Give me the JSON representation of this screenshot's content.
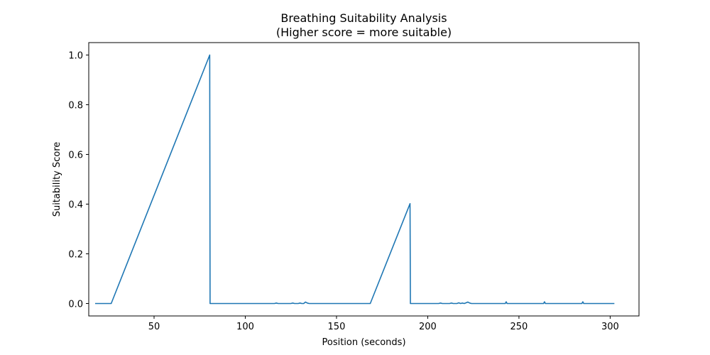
{
  "chart_data": {
    "type": "line",
    "title": "Breathing Suitability Analysis",
    "subtitle": "(Higher score = more suitable)",
    "xlabel": "Position (seconds)",
    "ylabel": "Suitability Score",
    "xlim": [
      14.2,
      315.8
    ],
    "ylim": [
      -0.05,
      1.05
    ],
    "x_ticks": [
      50,
      100,
      150,
      200,
      250,
      300
    ],
    "x_tick_labels": [
      "50",
      "100",
      "150",
      "200",
      "250",
      "300"
    ],
    "y_ticks": [
      0.0,
      0.2,
      0.4,
      0.6,
      0.8,
      1.0
    ],
    "y_tick_labels": [
      "0.0",
      "0.2",
      "0.4",
      "0.6",
      "0.8",
      "1.0"
    ],
    "grid": false,
    "legend": "none",
    "series": [
      {
        "color": "#1f77b4",
        "x": [
          18,
          26.5,
          80.5,
          80.7,
          116,
          117,
          118,
          125,
          126,
          127,
          129,
          130,
          131,
          132,
          133,
          134,
          135,
          168.5,
          190.3,
          190.5,
          206,
          207,
          208,
          212,
          213,
          214,
          216,
          217,
          218,
          219,
          220,
          221,
          222,
          223,
          224,
          242.5,
          243,
          243.5,
          263.5,
          264,
          264.5,
          284.5,
          285,
          285.5,
          302
        ],
        "y": [
          0,
          0,
          1.0,
          0,
          0,
          0.002,
          0,
          0,
          0.002,
          0,
          0,
          0.002,
          0,
          0,
          0.006,
          0.002,
          0,
          0,
          0.402,
          0,
          0,
          0.002,
          0,
          0,
          0.002,
          0,
          0,
          0.003,
          0,
          0.002,
          0,
          0.003,
          0.006,
          0.002,
          0,
          0,
          0.007,
          0,
          0,
          0.007,
          0,
          0,
          0.007,
          0,
          0
        ]
      }
    ]
  }
}
